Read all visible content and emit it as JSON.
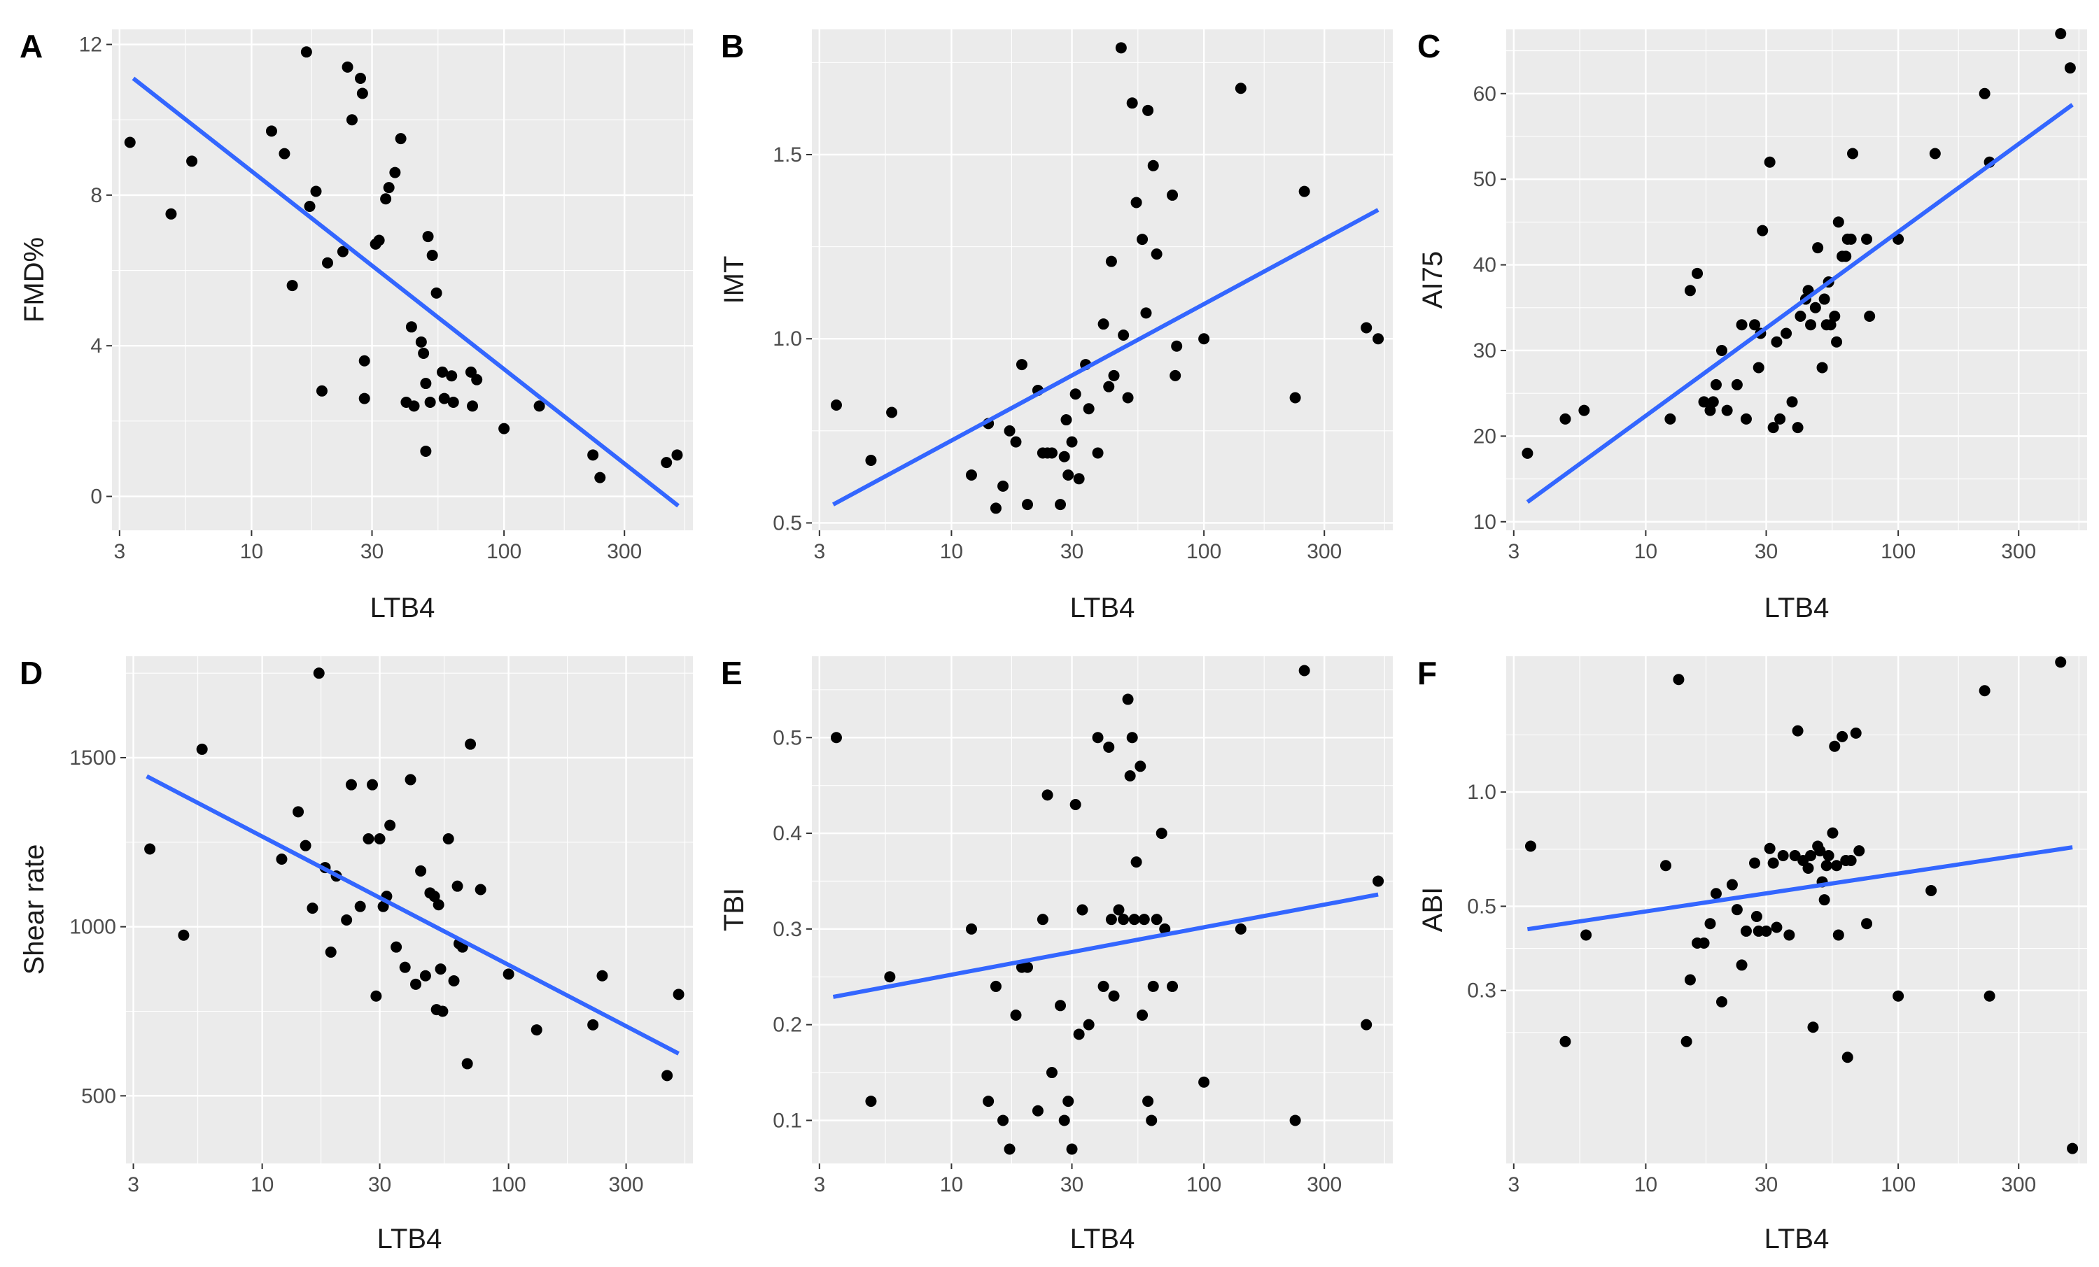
{
  "colors": {
    "fit_line": "#3366FF",
    "point": "#000000",
    "panel_bg": "#EBEBEB",
    "grid": "#FFFFFF"
  },
  "chart_data": [
    {
      "id": "A",
      "panel_label": "A",
      "type": "scatter",
      "trend": "linear fit",
      "xlabel": "LTB4",
      "ylabel": "FMD%",
      "xscale": "log10",
      "xlim": [
        2.8,
        560
      ],
      "ylim": [
        -0.9,
        12.4
      ],
      "xticks": [
        3,
        10,
        30,
        100,
        300
      ],
      "xtick_labels": [
        "3",
        "10",
        "30",
        "100",
        "300"
      ],
      "yticks": [
        0,
        4,
        8,
        12
      ],
      "ytick_labels": [
        "0",
        "4",
        "8",
        "12"
      ],
      "x": [
        3.3,
        4.8,
        5.8,
        12,
        13.5,
        14.5,
        16.5,
        17,
        18,
        19,
        20,
        23,
        24,
        25,
        27,
        27.5,
        28,
        28,
        31,
        32,
        34,
        35,
        37,
        39,
        41,
        43,
        44,
        47,
        48,
        49,
        49,
        50,
        51,
        52,
        54,
        57,
        58,
        62,
        63,
        74,
        75,
        78,
        100,
        138,
        225,
        240,
        440,
        485
      ],
      "y": [
        9.4,
        7.5,
        8.9,
        9.7,
        9.1,
        5.6,
        11.8,
        7.7,
        8.1,
        2.8,
        6.2,
        6.5,
        11.4,
        10.0,
        11.1,
        10.7,
        3.6,
        2.6,
        6.7,
        6.8,
        7.9,
        8.2,
        8.6,
        9.5,
        2.5,
        4.5,
        2.4,
        4.1,
        3.8,
        1.2,
        3.0,
        6.9,
        2.5,
        6.4,
        5.4,
        3.3,
        2.6,
        3.2,
        2.5,
        3.3,
        2.4,
        3.1,
        1.8,
        2.4,
        1.1,
        0.5,
        0.9,
        1.1
      ],
      "fit": {
        "x": [
          3.4,
          490
        ],
        "y": [
          11.1,
          -0.25
        ]
      }
    },
    {
      "id": "B",
      "panel_label": "B",
      "type": "scatter",
      "trend": "linear fit",
      "xlabel": "LTB4",
      "ylabel": "IMT",
      "xscale": "log10",
      "xlim": [
        2.8,
        560
      ],
      "ylim": [
        0.48,
        1.84
      ],
      "xticks": [
        3,
        10,
        30,
        100,
        300
      ],
      "xtick_labels": [
        "3",
        "10",
        "30",
        "100",
        "300"
      ],
      "yticks": [
        0.5,
        1.0,
        1.5
      ],
      "ytick_labels": [
        "0.5",
        "1.0",
        "1.5"
      ],
      "x": [
        3.5,
        4.8,
        5.8,
        12,
        14,
        15,
        16,
        17,
        18,
        19,
        20,
        22,
        23,
        24,
        25,
        27,
        28,
        28.5,
        29,
        30,
        31,
        32,
        34,
        35,
        38,
        40,
        42,
        43,
        44,
        47,
        48,
        50,
        52,
        54,
        57,
        59,
        60,
        63,
        65,
        75,
        77,
        78,
        100,
        140,
        230,
        250,
        440,
        490
      ],
      "y": [
        0.82,
        0.67,
        0.8,
        0.63,
        0.77,
        0.54,
        0.6,
        0.75,
        0.72,
        0.93,
        0.55,
        0.86,
        0.69,
        0.69,
        0.69,
        0.55,
        0.68,
        0.78,
        0.63,
        0.72,
        0.85,
        0.62,
        0.93,
        0.81,
        0.69,
        1.04,
        0.87,
        1.21,
        0.9,
        1.79,
        1.01,
        0.84,
        1.64,
        1.37,
        1.27,
        1.07,
        1.62,
        1.47,
        1.23,
        1.39,
        0.9,
        0.98,
        1.0,
        1.68,
        0.84,
        1.4,
        1.03,
        1.0
      ],
      "fit": {
        "x": [
          3.4,
          490
        ],
        "y": [
          0.55,
          1.35
        ]
      }
    },
    {
      "id": "C",
      "panel_label": "C",
      "type": "scatter",
      "trend": "linear fit",
      "xlabel": "LTB4",
      "ylabel": "AI75",
      "xscale": "log10",
      "xlim": [
        2.8,
        560
      ],
      "ylim": [
        9,
        67.5
      ],
      "xticks": [
        3,
        10,
        30,
        100,
        300
      ],
      "xtick_labels": [
        "3",
        "10",
        "30",
        "100",
        "300"
      ],
      "yticks": [
        10,
        20,
        30,
        40,
        50,
        60
      ],
      "ytick_labels": [
        "10",
        "20",
        "30",
        "40",
        "50",
        "60"
      ],
      "x": [
        3.4,
        4.8,
        5.7,
        12.5,
        15,
        16,
        17,
        18,
        18.5,
        19,
        20,
        21,
        23,
        24,
        25,
        27,
        28,
        28.5,
        29,
        31,
        32,
        33,
        34,
        36,
        38,
        40,
        41,
        43,
        44,
        45,
        47,
        48,
        50,
        51,
        52,
        53,
        54,
        56,
        57,
        58,
        60,
        62,
        63,
        65,
        66,
        75,
        77,
        100,
        140,
        220,
        230,
        440,
        480
      ],
      "y": [
        18,
        22,
        23,
        22,
        37,
        39,
        24,
        23,
        24,
        26,
        30,
        23,
        26,
        33,
        22,
        33,
        28,
        32,
        44,
        52,
        21,
        31,
        22,
        32,
        24,
        21,
        34,
        36,
        37,
        33,
        35,
        42,
        28,
        36,
        33,
        38,
        33,
        34,
        31,
        45,
        41,
        41,
        43,
        43,
        53,
        43,
        34,
        43,
        53,
        60,
        52,
        67,
        63
      ],
      "fit": {
        "x": [
          3.4,
          490
        ],
        "y": [
          12.3,
          58.7
        ]
      }
    },
    {
      "id": "D",
      "panel_label": "D",
      "type": "scatter",
      "trend": "linear fit",
      "xlabel": "LTB4",
      "ylabel": "Shear rate",
      "xscale": "log10",
      "xlim": [
        2.8,
        560
      ],
      "ylim": [
        300,
        1800
      ],
      "xticks": [
        3,
        10,
        30,
        100,
        300
      ],
      "xtick_labels": [
        "3",
        "10",
        "30",
        "100",
        "300"
      ],
      "yticks": [
        500,
        1000,
        1500
      ],
      "ytick_labels": [
        "500",
        "1000",
        "1500"
      ],
      "x": [
        3.5,
        4.8,
        5.7,
        12,
        14,
        15,
        16,
        17,
        18,
        19,
        20,
        22,
        23,
        25,
        27,
        28,
        29,
        30,
        31,
        32,
        33,
        35,
        38,
        40,
        42,
        44,
        46,
        48,
        50,
        51,
        52,
        53,
        54,
        57,
        60,
        62,
        63,
        65,
        68,
        70,
        77,
        100,
        130,
        220,
        240,
        440,
        490
      ],
      "y": [
        1230,
        975,
        1525,
        1200,
        1340,
        1240,
        1055,
        1750,
        1175,
        925,
        1150,
        1020,
        1420,
        1060,
        1260,
        1420,
        795,
        1260,
        1060,
        1090,
        1300,
        940,
        880,
        1435,
        830,
        1165,
        855,
        1100,
        1090,
        755,
        1065,
        875,
        750,
        1260,
        840,
        1120,
        950,
        940,
        595,
        1540,
        1110,
        860,
        695,
        710,
        855,
        560,
        800
      ],
      "fit": {
        "x": [
          3.4,
          490
        ],
        "y": [
          1445,
          625
        ]
      }
    },
    {
      "id": "E",
      "panel_label": "E",
      "type": "scatter",
      "trend": "linear fit",
      "xlabel": "LTB4",
      "ylabel": "TBI",
      "xscale": "log10",
      "xlim": [
        2.8,
        560
      ],
      "ylim": [
        0.055,
        0.585
      ],
      "xticks": [
        3,
        10,
        30,
        100,
        300
      ],
      "xtick_labels": [
        "3",
        "10",
        "30",
        "100",
        "300"
      ],
      "yticks": [
        0.1,
        0.2,
        0.3,
        0.4,
        0.5
      ],
      "ytick_labels": [
        "0.1",
        "0.2",
        "0.3",
        "0.4",
        "0.5"
      ],
      "x": [
        3.5,
        4.8,
        5.7,
        12,
        14,
        15,
        16,
        17,
        18,
        19,
        20,
        22,
        23,
        24,
        25,
        27,
        28,
        29,
        30,
        31,
        32,
        33,
        35,
        38,
        40,
        42,
        43,
        44,
        46,
        48,
        50,
        51,
        52,
        53,
        54,
        56,
        57,
        58,
        60,
        62,
        63,
        65,
        68,
        70,
        75,
        100,
        140,
        230,
        250,
        440,
        490
      ],
      "y": [
        0.5,
        0.12,
        0.25,
        0.3,
        0.12,
        0.24,
        0.1,
        0.07,
        0.21,
        0.26,
        0.26,
        0.11,
        0.31,
        0.44,
        0.15,
        0.22,
        0.1,
        0.12,
        0.07,
        0.43,
        0.19,
        0.32,
        0.2,
        0.5,
        0.24,
        0.49,
        0.31,
        0.23,
        0.32,
        0.31,
        0.54,
        0.46,
        0.5,
        0.31,
        0.37,
        0.47,
        0.21,
        0.31,
        0.12,
        0.1,
        0.24,
        0.31,
        0.4,
        0.3,
        0.24,
        0.14,
        0.3,
        0.1,
        0.57,
        0.2,
        0.35
      ],
      "fit": {
        "x": [
          3.4,
          490
        ],
        "y": [
          0.229,
          0.336
        ]
      }
    },
    {
      "id": "F",
      "panel_label": "F",
      "type": "scatter",
      "trend": "linear fit",
      "xlabel": "LTB4",
      "ylabel": "ABI",
      "xscale": "log10",
      "yscale": "log10",
      "xlim": [
        2.8,
        560
      ],
      "ylim": [
        0.105,
        2.28
      ],
      "xticks": [
        3,
        10,
        30,
        100,
        300
      ],
      "xtick_labels": [
        "3",
        "10",
        "30",
        "100",
        "300"
      ],
      "yticks": [
        0.3,
        0.5,
        1.0
      ],
      "ytick_labels": [
        "0.3",
        "0.5",
        "1.0"
      ],
      "x": [
        3.5,
        4.8,
        5.8,
        12,
        13.5,
        14.5,
        15,
        16,
        17,
        18,
        19,
        20,
        22,
        23,
        24,
        25,
        27,
        27.5,
        28,
        30,
        31,
        32,
        33,
        35,
        37,
        39,
        40,
        42,
        44,
        45,
        46,
        48,
        49,
        50,
        51,
        52,
        53,
        55,
        56,
        57,
        58,
        60,
        62,
        63,
        65,
        68,
        70,
        75,
        100,
        135,
        220,
        230,
        440,
        490
      ],
      "y": [
        0.72,
        0.22,
        0.42,
        0.64,
        1.98,
        0.22,
        0.32,
        0.4,
        0.4,
        0.45,
        0.54,
        0.28,
        0.57,
        0.49,
        0.35,
        0.43,
        0.65,
        0.47,
        0.43,
        0.43,
        0.71,
        0.65,
        0.44,
        0.68,
        0.42,
        0.68,
        1.45,
        0.66,
        0.63,
        0.68,
        0.24,
        0.72,
        0.7,
        0.58,
        0.52,
        0.64,
        0.68,
        0.78,
        1.32,
        0.64,
        0.42,
        1.4,
        0.66,
        0.2,
        0.66,
        1.43,
        0.7,
        0.45,
        0.29,
        0.55,
        1.85,
        0.29,
        2.2,
        0.115
      ],
      "fit": {
        "x": [
          3.4,
          490
        ],
        "y": [
          0.435,
          0.715
        ]
      }
    }
  ]
}
